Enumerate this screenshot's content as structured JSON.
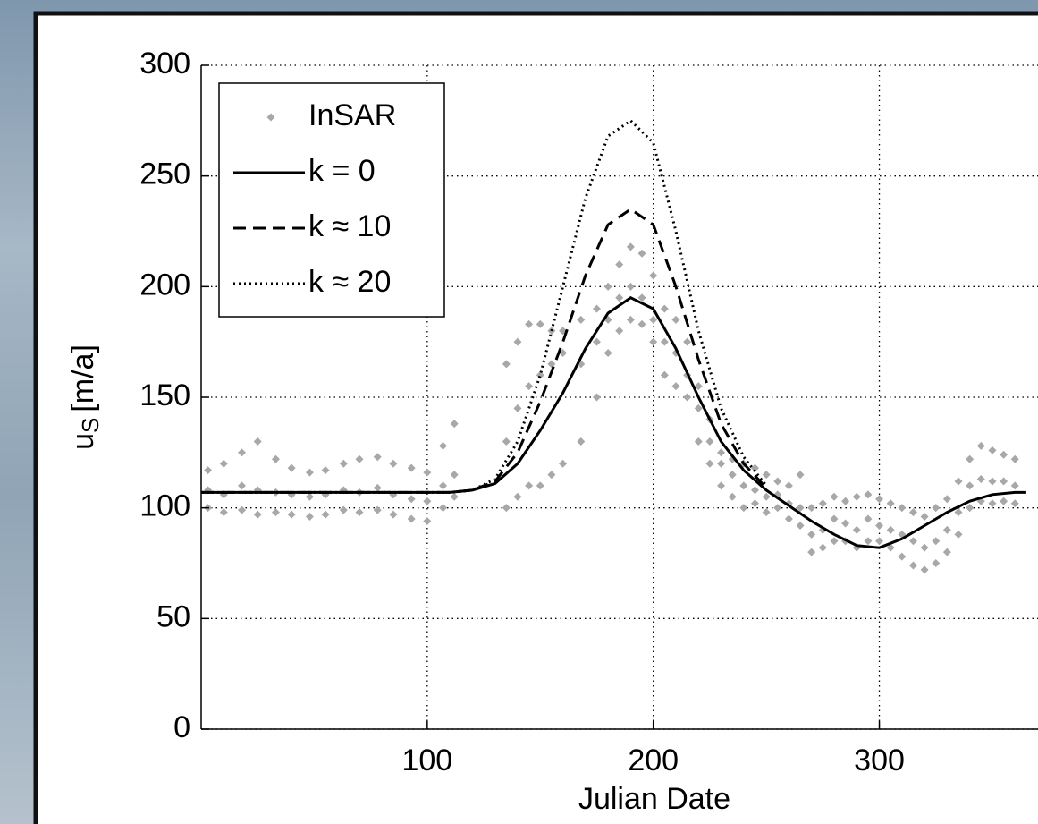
{
  "chart_data": {
    "type": "line",
    "xlabel": "Julian Date",
    "ylabel": {
      "base": "u",
      "subscript": "S",
      "unit": "[m/a]"
    },
    "xlim": [
      0,
      369
    ],
    "ylim": [
      0,
      300
    ],
    "xticks": [
      100,
      200,
      300
    ],
    "yticks": [
      0,
      50,
      100,
      150,
      200,
      250,
      300
    ],
    "grid": true,
    "legend": "upper left",
    "series": [
      {
        "name": "InSAR",
        "color": "#a8a8a8",
        "style": "markers",
        "x": [
          3,
          3,
          3,
          10,
          10,
          10,
          18,
          18,
          18,
          25,
          25,
          25,
          33,
          33,
          33,
          40,
          40,
          40,
          48,
          48,
          48,
          55,
          55,
          55,
          63,
          63,
          63,
          70,
          70,
          70,
          78,
          78,
          78,
          85,
          85,
          85,
          93,
          93,
          93,
          100,
          100,
          100,
          107,
          107,
          107,
          112,
          112,
          112,
          135,
          135,
          135,
          140,
          140,
          140,
          145,
          145,
          145,
          150,
          150,
          150,
          155,
          155,
          155,
          160,
          160,
          160,
          168,
          168,
          168,
          175,
          175,
          175,
          180,
          180,
          180,
          185,
          185,
          185,
          190,
          190,
          190,
          195,
          195,
          195,
          200,
          200,
          200,
          205,
          205,
          205,
          210,
          210,
          210,
          215,
          215,
          215,
          220,
          220,
          220,
          225,
          225,
          225,
          230,
          230,
          230,
          235,
          235,
          235,
          240,
          240,
          240,
          245,
          245,
          245,
          250,
          250,
          250,
          255,
          255,
          255,
          260,
          260,
          260,
          265,
          265,
          265,
          270,
          270,
          270,
          275,
          275,
          275,
          280,
          280,
          280,
          285,
          285,
          285,
          290,
          290,
          290,
          295,
          295,
          295,
          300,
          300,
          300,
          305,
          305,
          305,
          310,
          310,
          310,
          315,
          315,
          315,
          320,
          320,
          320,
          325,
          325,
          325,
          330,
          330,
          330,
          335,
          335,
          335,
          340,
          340,
          340,
          345,
          345,
          345,
          350,
          350,
          350,
          355,
          355,
          355,
          360,
          360,
          360
        ],
        "values": [
          100,
          108,
          117,
          98,
          106,
          120,
          99,
          110,
          125,
          97,
          108,
          130,
          98,
          107,
          122,
          97,
          106,
          118,
          96,
          105,
          116,
          97,
          106,
          117,
          99,
          108,
          120,
          98,
          107,
          122,
          99,
          109,
          123,
          97,
          106,
          120,
          95,
          104,
          118,
          94,
          103,
          116,
          100,
          110,
          128,
          105,
          115,
          138,
          100,
          130,
          165,
          105,
          145,
          175,
          110,
          155,
          183,
          110,
          160,
          183,
          115,
          165,
          180,
          120,
          170,
          180,
          130,
          165,
          185,
          150,
          175,
          190,
          170,
          185,
          200,
          180,
          195,
          210,
          185,
          200,
          218,
          183,
          195,
          215,
          175,
          185,
          205,
          160,
          175,
          190,
          155,
          170,
          185,
          150,
          160,
          175,
          130,
          145,
          155,
          120,
          130,
          140,
          110,
          120,
          125,
          105,
          115,
          122,
          100,
          110,
          120,
          102,
          108,
          118,
          98,
          105,
          115,
          100,
          106,
          112,
          95,
          102,
          110,
          92,
          100,
          115,
          80,
          88,
          100,
          82,
          90,
          102,
          85,
          95,
          105,
          85,
          93,
          103,
          82,
          90,
          105,
          85,
          95,
          106,
          85,
          92,
          104,
          82,
          90,
          102,
          78,
          88,
          100,
          74,
          85,
          98,
          72,
          82,
          96,
          75,
          85,
          100,
          80,
          90,
          104,
          88,
          98,
          112,
          100,
          110,
          122,
          103,
          113,
          128,
          102,
          112,
          126,
          103,
          112,
          124,
          102,
          110,
          122
        ]
      },
      {
        "name": "k = 0",
        "color": "#000000",
        "style": "solid",
        "x": [
          0,
          20,
          40,
          60,
          80,
          100,
          110,
          120,
          130,
          140,
          150,
          160,
          170,
          180,
          190,
          200,
          210,
          220,
          230,
          240,
          250,
          260,
          270,
          280,
          290,
          300,
          310,
          320,
          330,
          340,
          350,
          360,
          365
        ],
        "values": [
          107,
          107,
          107,
          107,
          107,
          107,
          107,
          108,
          111,
          120,
          135,
          152,
          172,
          188,
          195,
          190,
          172,
          150,
          130,
          117,
          108,
          101,
          94,
          88,
          83,
          82,
          86,
          92,
          98,
          103,
          106,
          107,
          107
        ]
      },
      {
        "name": "k ≈ 10",
        "color": "#000000",
        "style": "dashed",
        "x": [
          0,
          20,
          40,
          60,
          80,
          100,
          110,
          120,
          130,
          140,
          150,
          160,
          170,
          180,
          190,
          200,
          210,
          220,
          230,
          240,
          250
        ],
        "values": [
          107,
          107,
          107,
          107,
          107,
          107,
          107,
          108,
          112,
          125,
          148,
          175,
          205,
          228,
          235,
          228,
          200,
          167,
          138,
          120,
          109
        ]
      },
      {
        "name": "k ≈ 20",
        "color": "#000000",
        "style": "dotted",
        "x": [
          0,
          20,
          40,
          60,
          80,
          100,
          110,
          120,
          130,
          140,
          150,
          160,
          170,
          180,
          190,
          200,
          210,
          220,
          230,
          240,
          250
        ],
        "values": [
          107,
          107,
          107,
          107,
          107,
          107,
          107,
          108,
          113,
          130,
          160,
          200,
          240,
          268,
          275,
          265,
          225,
          180,
          145,
          123,
          110
        ]
      }
    ]
  }
}
